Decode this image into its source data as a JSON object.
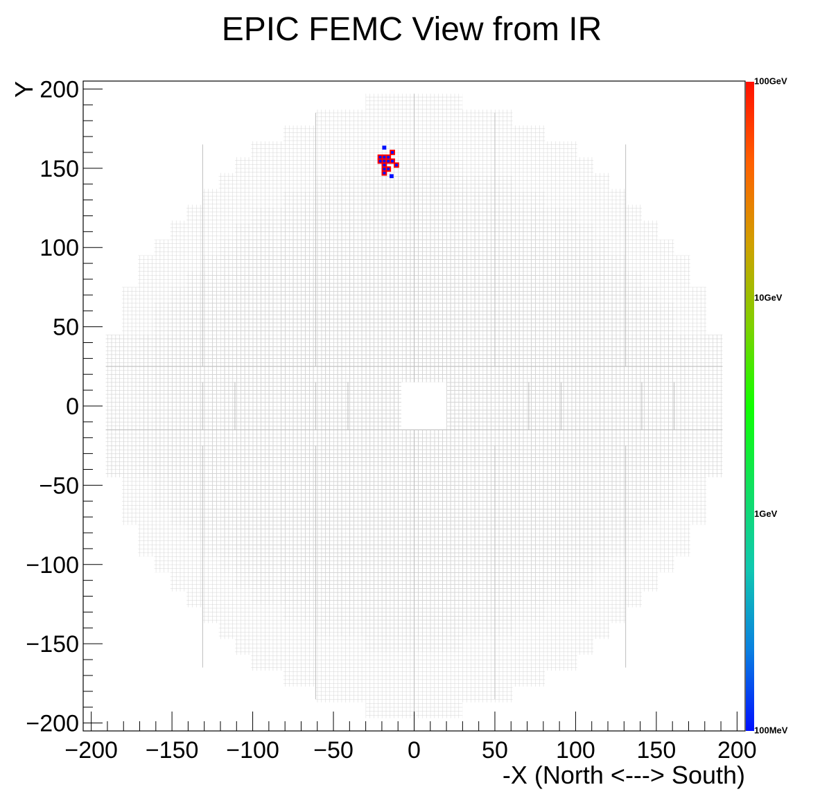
{
  "chart_data": {
    "type": "heatmap",
    "title": "EPIC FEMC View from IR",
    "xlabel": "-X (North <---> South)",
    "ylabel": "Y",
    "xlim": [
      -205,
      205
    ],
    "ylim": [
      -205,
      205
    ],
    "x_ticks": [
      -200,
      -150,
      -100,
      -50,
      0,
      50,
      100,
      150,
      200
    ],
    "y_ticks": [
      -200,
      -150,
      -100,
      -50,
      0,
      50,
      100,
      150,
      200
    ],
    "x_tick_labels": [
      "−200",
      "−150",
      "−100",
      "−50",
      "0",
      "50",
      "100",
      "150",
      "200"
    ],
    "y_tick_labels": [
      "−200",
      "−150",
      "−100",
      "−50",
      "0",
      "50",
      "100",
      "150",
      "200"
    ],
    "cell_size": 2.5,
    "detector_outline": [
      {
        "x_abs": 30,
        "y_min": 165,
        "y_max": 197
      },
      {
        "x_abs": 61,
        "y_min": 155,
        "y_max": 187
      },
      {
        "x_abs": 81,
        "y_min": 145,
        "y_max": 177
      },
      {
        "x_abs": 101,
        "y_min": 135,
        "y_max": 167
      },
      {
        "x_abs": 111,
        "y_min": 125,
        "y_max": 157
      },
      {
        "x_abs": 121,
        "y_min": 115,
        "y_max": 147
      },
      {
        "x_abs": 131,
        "y_min": 105,
        "y_max": 137
      },
      {
        "x_abs": 141,
        "y_min": 95,
        "y_max": 127
      },
      {
        "x_abs": 151,
        "y_min": 85,
        "y_max": 117
      },
      {
        "x_abs": 161,
        "y_min": 75,
        "y_max": 105
      },
      {
        "x_abs": 171,
        "y_min": 65,
        "y_max": 95
      },
      {
        "x_abs": 181,
        "y_min": 45,
        "y_max": 75
      },
      {
        "x_abs": 191,
        "y_min": 0,
        "y_max": 45
      }
    ],
    "beam_hole": {
      "x": [
        -8,
        20
      ],
      "y": [
        -15,
        15
      ]
    },
    "hits": [
      {
        "x": -21,
        "y": 157,
        "energy_gev": 80
      },
      {
        "x": -18.5,
        "y": 157,
        "energy_gev": 80
      },
      {
        "x": -16,
        "y": 157,
        "energy_gev": 80
      },
      {
        "x": -13.5,
        "y": 160,
        "energy_gev": 80
      },
      {
        "x": -21,
        "y": 154.5,
        "energy_gev": 80
      },
      {
        "x": -18.5,
        "y": 154.5,
        "energy_gev": 80
      },
      {
        "x": -16,
        "y": 154.5,
        "energy_gev": 80
      },
      {
        "x": -13.5,
        "y": 154.5,
        "energy_gev": 80
      },
      {
        "x": -11,
        "y": 152,
        "energy_gev": 80
      },
      {
        "x": -18.5,
        "y": 152,
        "energy_gev": 80
      },
      {
        "x": -16,
        "y": 149.5,
        "energy_gev": 80
      },
      {
        "x": -18.5,
        "y": 149.5,
        "energy_gev": 80
      },
      {
        "x": -18.5,
        "y": 147,
        "energy_gev": 80
      },
      {
        "x": -18.5,
        "y": 163,
        "energy_gev": 0.12
      },
      {
        "x": -14,
        "y": 145,
        "energy_gev": 0.12
      }
    ],
    "colorbar": {
      "scale": "log",
      "range_gev": [
        0.1,
        100
      ],
      "labels": [
        {
          "text": "100GeV",
          "value_gev": 100
        },
        {
          "text": "10GeV",
          "value_gev": 10
        },
        {
          "text": "1GeV",
          "value_gev": 1
        },
        {
          "text": "100MeV",
          "value_gev": 0.1
        }
      ],
      "colors": [
        "#0010ff",
        "#0a80e0",
        "#10c8b0",
        "#10e060",
        "#10ff00",
        "#80d000",
        "#d0a000",
        "#ff6000",
        "#ff1000"
      ]
    },
    "grid_color": "#d4d4d4",
    "module_line_color": "#bdbdbd",
    "hit_edge_color": "#ff0000",
    "hit_core_color": "#0010ff",
    "grid": false,
    "legend": "none"
  }
}
